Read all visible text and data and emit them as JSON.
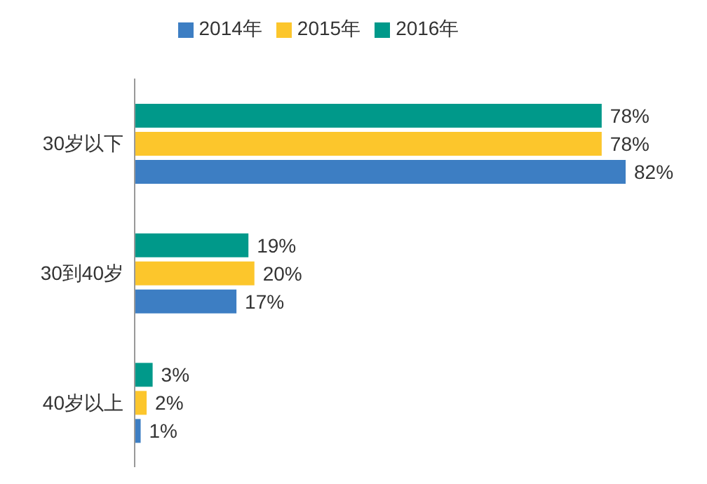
{
  "chart_data": {
    "type": "bar",
    "orientation": "horizontal",
    "categories": [
      "30岁以下",
      "30到40岁",
      "40岁以上"
    ],
    "series": [
      {
        "name": "2016年",
        "color": "#00998a",
        "values": [
          78,
          19,
          3
        ],
        "value_labels": [
          "78%",
          "19%",
          "3%"
        ]
      },
      {
        "name": "2015年",
        "color": "#fcc62c",
        "values": [
          78,
          20,
          2
        ],
        "value_labels": [
          "78%",
          "20%",
          "2%"
        ]
      },
      {
        "name": "2014年",
        "color": "#3d7ec3",
        "values": [
          82,
          17,
          1
        ],
        "value_labels": [
          "82%",
          "17%",
          "1%"
        ]
      }
    ],
    "legend": "top"
  }
}
